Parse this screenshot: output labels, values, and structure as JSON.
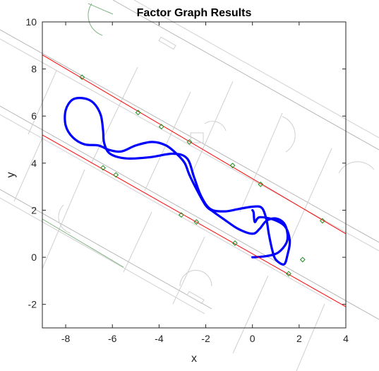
{
  "chart_data": {
    "type": "line",
    "title": "Factor Graph Results",
    "xlabel": "x",
    "ylabel": "y",
    "xlim": [
      -9,
      4
    ],
    "ylim": [
      -3,
      10
    ],
    "x_ticks": [
      -8,
      -6,
      -4,
      -2,
      0,
      2,
      4
    ],
    "y_ticks": [
      -2,
      0,
      2,
      4,
      6,
      8,
      10
    ],
    "grid": false,
    "background": "floor-plan drawing (walls, rooms, doors) behind the data",
    "series": [
      {
        "style": "thick-line",
        "color": "#0000ff",
        "points": [
          [
            0.0,
            0.0
          ],
          [
            0.6,
            0.05
          ],
          [
            1.1,
            0.2
          ],
          [
            1.45,
            0.6
          ],
          [
            1.5,
            1.0
          ],
          [
            1.35,
            1.45
          ],
          [
            1.0,
            1.65
          ],
          [
            0.6,
            1.55
          ],
          [
            0.3,
            1.2
          ],
          [
            0.0,
            1.0
          ],
          [
            -0.6,
            1.2
          ],
          [
            -1.2,
            1.6
          ],
          [
            -1.7,
            1.95
          ],
          [
            -2.0,
            2.2
          ],
          [
            -2.4,
            2.9
          ],
          [
            -2.7,
            3.5
          ],
          [
            -2.9,
            4.0
          ],
          [
            -3.2,
            4.35
          ],
          [
            -3.7,
            4.75
          ],
          [
            -4.3,
            4.9
          ],
          [
            -5.0,
            4.75
          ],
          [
            -5.6,
            4.5
          ],
          [
            -6.1,
            4.55
          ],
          [
            -6.6,
            4.75
          ],
          [
            -7.2,
            4.8
          ],
          [
            -7.7,
            5.1
          ],
          [
            -8.0,
            5.6
          ],
          [
            -8.0,
            6.25
          ],
          [
            -7.7,
            6.7
          ],
          [
            -7.2,
            6.75
          ],
          [
            -6.8,
            6.55
          ],
          [
            -6.5,
            6.05
          ],
          [
            -6.4,
            5.4
          ],
          [
            -6.35,
            4.85
          ],
          [
            -6.1,
            4.4
          ],
          [
            -5.4,
            4.2
          ],
          [
            -4.4,
            4.25
          ],
          [
            -3.4,
            4.4
          ],
          [
            -2.8,
            4.2
          ],
          [
            -2.5,
            3.4
          ],
          [
            -2.2,
            2.6
          ],
          [
            -1.8,
            2.05
          ],
          [
            -1.2,
            1.95
          ],
          [
            -0.6,
            2.05
          ],
          [
            0.0,
            2.15
          ],
          [
            0.4,
            2.1
          ],
          [
            0.6,
            1.6
          ],
          [
            0.7,
            1.0
          ],
          [
            0.85,
            0.3
          ],
          [
            1.0,
            -0.1
          ],
          [
            1.35,
            -0.3
          ],
          [
            1.5,
            0.1
          ],
          [
            1.6,
            0.7
          ],
          [
            1.4,
            1.3
          ],
          [
            0.9,
            1.6
          ],
          [
            0.3,
            1.7
          ],
          [
            0.1,
            1.5
          ],
          [
            0.05,
            1.9
          ],
          [
            0.0,
            2.0
          ]
        ]
      },
      {
        "style": "thin-line",
        "color": "#ff0000",
        "points": [
          [
            -9,
            8.6
          ],
          [
            4,
            1.0
          ]
        ]
      },
      {
        "style": "thin-line",
        "color": "#ff0000",
        "points": [
          [
            -9,
            5.2
          ],
          [
            4,
            -2.1
          ]
        ]
      },
      {
        "style": "diamond-markers",
        "color": "#1f8f1f",
        "points": [
          [
            -7.3,
            7.65
          ],
          [
            -4.9,
            6.15
          ],
          [
            -3.9,
            5.55
          ],
          [
            -2.7,
            4.9
          ],
          [
            -0.85,
            3.9
          ],
          [
            0.35,
            3.1
          ],
          [
            3.0,
            1.55
          ],
          [
            -6.4,
            3.8
          ],
          [
            -5.85,
            3.5
          ],
          [
            -3.05,
            1.8
          ],
          [
            -2.4,
            1.5
          ],
          [
            -0.75,
            0.6
          ],
          [
            1.55,
            -0.7
          ],
          [
            2.15,
            -0.1
          ]
        ]
      }
    ]
  }
}
